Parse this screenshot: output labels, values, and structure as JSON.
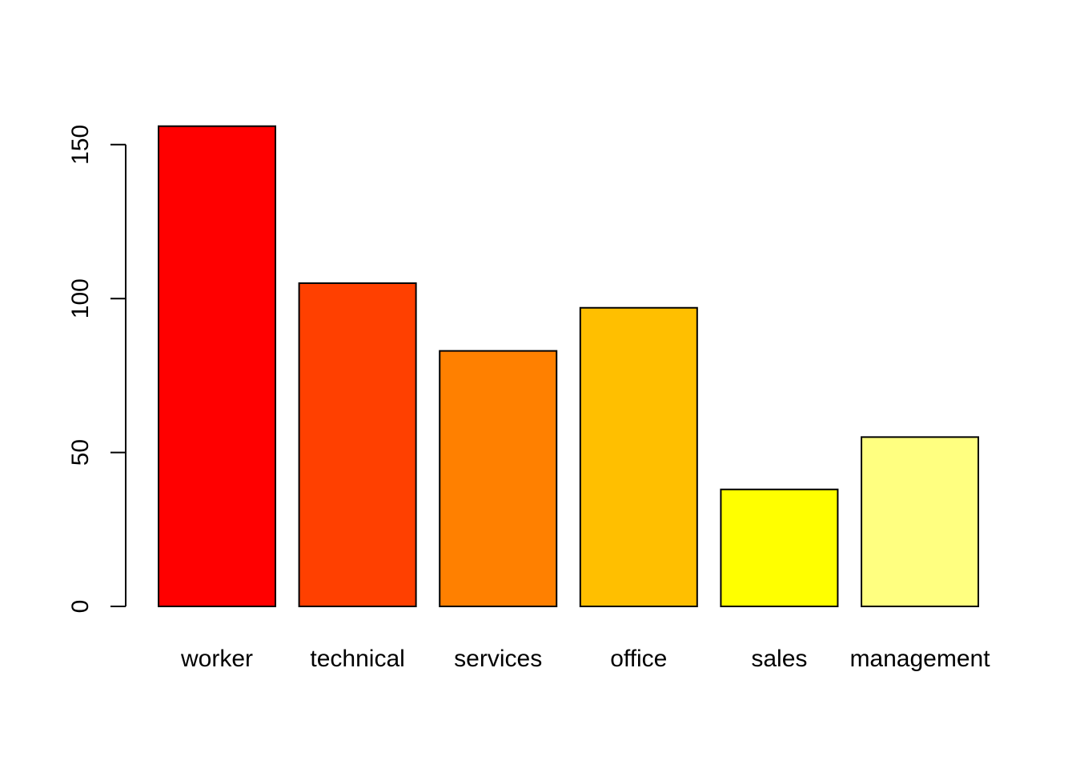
{
  "chart_data": {
    "type": "bar",
    "categories": [
      "worker",
      "technical",
      "services",
      "office",
      "sales",
      "management"
    ],
    "values": [
      156,
      105,
      83,
      97,
      38,
      55
    ],
    "colors": [
      "#FF0000",
      "#FF4000",
      "#FF8000",
      "#FFBF00",
      "#FFFF00",
      "#FFFF80"
    ],
    "title": "",
    "xlabel": "",
    "ylabel": "",
    "ylim": [
      0,
      156
    ],
    "y_ticks": [
      0,
      50,
      100,
      150
    ],
    "grid": false
  }
}
